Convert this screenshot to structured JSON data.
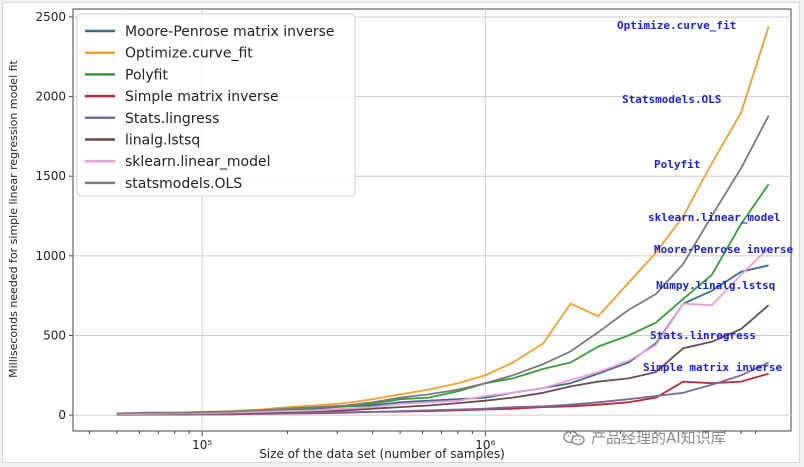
{
  "chart_data": {
    "type": "line",
    "xlabel": "Size of the data set (number of samples)",
    "ylabel": "Milliseconds needed for simple linear regression model fit",
    "xscale": "log",
    "xlim": [
      35000,
      12000000
    ],
    "ylim": [
      -100,
      2550
    ],
    "yticks": [
      0,
      500,
      1000,
      1500,
      2000,
      2500
    ],
    "xticks": [
      {
        "value": 100000,
        "label": "10⁵"
      },
      {
        "value": 1000000,
        "label": "10⁶"
      }
    ],
    "grid": true,
    "legend_position": "top-left",
    "series": [
      {
        "name": "Moore-Penrose matrix inverse",
        "color": "#3a6a8c",
        "points": [
          [
            50000,
            5
          ],
          [
            63000,
            10
          ],
          [
            80000,
            10
          ],
          [
            100000,
            12
          ],
          [
            125000,
            15
          ],
          [
            160000,
            20
          ],
          [
            200000,
            30
          ],
          [
            250000,
            40
          ],
          [
            320000,
            55
          ],
          [
            400000,
            60
          ],
          [
            500000,
            80
          ],
          [
            630000,
            90
          ],
          [
            800000,
            100
          ],
          [
            1000000,
            110
          ],
          [
            1250000,
            140
          ],
          [
            1600000,
            170
          ],
          [
            2000000,
            200
          ],
          [
            2500000,
            260
          ],
          [
            3200000,
            330
          ],
          [
            4000000,
            450
          ],
          [
            5000000,
            700
          ],
          [
            6300000,
            780
          ],
          [
            8000000,
            900
          ],
          [
            10000000,
            940
          ]
        ]
      },
      {
        "name": "Optimize.curve_fit",
        "color": "#f0a030",
        "points": [
          [
            50000,
            10
          ],
          [
            63000,
            15
          ],
          [
            80000,
            15
          ],
          [
            100000,
            20
          ],
          [
            125000,
            25
          ],
          [
            160000,
            35
          ],
          [
            200000,
            50
          ],
          [
            250000,
            60
          ],
          [
            320000,
            75
          ],
          [
            400000,
            100
          ],
          [
            500000,
            130
          ],
          [
            630000,
            160
          ],
          [
            800000,
            200
          ],
          [
            1000000,
            250
          ],
          [
            1250000,
            330
          ],
          [
            1600000,
            450
          ],
          [
            2000000,
            700
          ],
          [
            2500000,
            620
          ],
          [
            3200000,
            830
          ],
          [
            4000000,
            1020
          ],
          [
            5000000,
            1250
          ],
          [
            6300000,
            1580
          ],
          [
            8000000,
            1900
          ],
          [
            10000000,
            2440
          ]
        ]
      },
      {
        "name": "Polyfit",
        "color": "#3a9a3a",
        "points": [
          [
            50000,
            5
          ],
          [
            63000,
            10
          ],
          [
            80000,
            10
          ],
          [
            100000,
            12
          ],
          [
            125000,
            18
          ],
          [
            160000,
            25
          ],
          [
            200000,
            35
          ],
          [
            250000,
            45
          ],
          [
            320000,
            55
          ],
          [
            400000,
            70
          ],
          [
            500000,
            100
          ],
          [
            630000,
            110
          ],
          [
            800000,
            150
          ],
          [
            1000000,
            200
          ],
          [
            1250000,
            230
          ],
          [
            1600000,
            290
          ],
          [
            2000000,
            330
          ],
          [
            2500000,
            430
          ],
          [
            3200000,
            500
          ],
          [
            4000000,
            580
          ],
          [
            5000000,
            730
          ],
          [
            6300000,
            880
          ],
          [
            8000000,
            1200
          ],
          [
            10000000,
            1450
          ]
        ]
      },
      {
        "name": "Simple matrix inverse",
        "color": "#b82a3a",
        "points": [
          [
            50000,
            2
          ],
          [
            63000,
            3
          ],
          [
            80000,
            3
          ],
          [
            100000,
            5
          ],
          [
            125000,
            5
          ],
          [
            160000,
            8
          ],
          [
            200000,
            10
          ],
          [
            250000,
            12
          ],
          [
            320000,
            15
          ],
          [
            400000,
            20
          ],
          [
            500000,
            22
          ],
          [
            630000,
            25
          ],
          [
            800000,
            30
          ],
          [
            1000000,
            35
          ],
          [
            1250000,
            40
          ],
          [
            1600000,
            50
          ],
          [
            2000000,
            55
          ],
          [
            2500000,
            65
          ],
          [
            3200000,
            80
          ],
          [
            4000000,
            110
          ],
          [
            5000000,
            210
          ],
          [
            6300000,
            200
          ],
          [
            8000000,
            210
          ],
          [
            10000000,
            260
          ]
        ]
      },
      {
        "name": "Stats.lingress",
        "color": "#7a6a9a",
        "points": [
          [
            50000,
            3
          ],
          [
            63000,
            5
          ],
          [
            80000,
            5
          ],
          [
            100000,
            6
          ],
          [
            125000,
            8
          ],
          [
            160000,
            10
          ],
          [
            200000,
            12
          ],
          [
            250000,
            15
          ],
          [
            320000,
            18
          ],
          [
            400000,
            20
          ],
          [
            500000,
            25
          ],
          [
            630000,
            30
          ],
          [
            800000,
            35
          ],
          [
            1000000,
            40
          ],
          [
            1250000,
            50
          ],
          [
            1600000,
            55
          ],
          [
            2000000,
            65
          ],
          [
            2500000,
            80
          ],
          [
            3200000,
            100
          ],
          [
            4000000,
            120
          ],
          [
            5000000,
            140
          ],
          [
            6300000,
            190
          ],
          [
            8000000,
            250
          ],
          [
            10000000,
            330
          ]
        ]
      },
      {
        "name": "linalg.lstsq",
        "color": "#6a4a4a",
        "points": [
          [
            50000,
            5
          ],
          [
            63000,
            8
          ],
          [
            80000,
            8
          ],
          [
            100000,
            10
          ],
          [
            125000,
            12
          ],
          [
            160000,
            15
          ],
          [
            200000,
            20
          ],
          [
            250000,
            25
          ],
          [
            320000,
            30
          ],
          [
            400000,
            40
          ],
          [
            500000,
            50
          ],
          [
            630000,
            60
          ],
          [
            800000,
            75
          ],
          [
            1000000,
            90
          ],
          [
            1250000,
            110
          ],
          [
            1600000,
            140
          ],
          [
            2000000,
            180
          ],
          [
            2500000,
            210
          ],
          [
            3200000,
            230
          ],
          [
            4000000,
            270
          ],
          [
            5000000,
            420
          ],
          [
            6300000,
            460
          ],
          [
            8000000,
            540
          ],
          [
            10000000,
            690
          ]
        ]
      },
      {
        "name": "sklearn.linear_model",
        "color": "#e8a0d8",
        "points": [
          [
            50000,
            5
          ],
          [
            63000,
            8
          ],
          [
            80000,
            10
          ],
          [
            100000,
            12
          ],
          [
            125000,
            15
          ],
          [
            160000,
            20
          ],
          [
            200000,
            25
          ],
          [
            250000,
            30
          ],
          [
            320000,
            40
          ],
          [
            400000,
            50
          ],
          [
            500000,
            70
          ],
          [
            630000,
            80
          ],
          [
            800000,
            90
          ],
          [
            1000000,
            120
          ],
          [
            1250000,
            140
          ],
          [
            1600000,
            170
          ],
          [
            2000000,
            220
          ],
          [
            2500000,
            270
          ],
          [
            3200000,
            340
          ],
          [
            4000000,
            440
          ],
          [
            5000000,
            700
          ],
          [
            6300000,
            690
          ],
          [
            8000000,
            880
          ],
          [
            10000000,
            1050
          ]
        ]
      },
      {
        "name": "statsmodels.OLS",
        "color": "#7a7a7a",
        "points": [
          [
            50000,
            10
          ],
          [
            63000,
            15
          ],
          [
            80000,
            15
          ],
          [
            100000,
            18
          ],
          [
            125000,
            22
          ],
          [
            160000,
            30
          ],
          [
            200000,
            40
          ],
          [
            250000,
            50
          ],
          [
            320000,
            60
          ],
          [
            400000,
            80
          ],
          [
            500000,
            110
          ],
          [
            630000,
            130
          ],
          [
            800000,
            160
          ],
          [
            1000000,
            200
          ],
          [
            1250000,
            250
          ],
          [
            1600000,
            320
          ],
          [
            2000000,
            400
          ],
          [
            2500000,
            520
          ],
          [
            3200000,
            660
          ],
          [
            4000000,
            760
          ],
          [
            5000000,
            950
          ],
          [
            6300000,
            1250
          ],
          [
            8000000,
            1550
          ],
          [
            10000000,
            1880
          ]
        ]
      }
    ],
    "annotations": [
      {
        "text": "Optimize.curve_fit",
        "x": 10000000,
        "y": 2440,
        "color": "#1a22d0"
      },
      {
        "text": "Statsmodels.OLS",
        "x": 10000000,
        "y": 1880,
        "color": "#1a22d0"
      },
      {
        "text": "Polyfit",
        "x": 10000000,
        "y": 1450,
        "color": "#1a22d0"
      },
      {
        "text": "sklearn.linear_model",
        "x": 10000000,
        "y": 1050,
        "color": "#1a22d0"
      },
      {
        "text": "Moore-Penrose inverse",
        "x": 10000000,
        "y": 940,
        "color": "#1a22d0"
      },
      {
        "text": "Numpy.linalg.lstsq",
        "x": 10000000,
        "y": 690,
        "color": "#1a22d0"
      },
      {
        "text": "Stats.linregress",
        "x": 10000000,
        "y": 330,
        "color": "#1a22d0"
      },
      {
        "text": "Simple matrix inverse",
        "x": 10000000,
        "y": 260,
        "color": "#1a22d0"
      }
    ]
  },
  "watermark": {
    "text": "产品经理的AI知识库",
    "icon": "wechat-icon"
  }
}
